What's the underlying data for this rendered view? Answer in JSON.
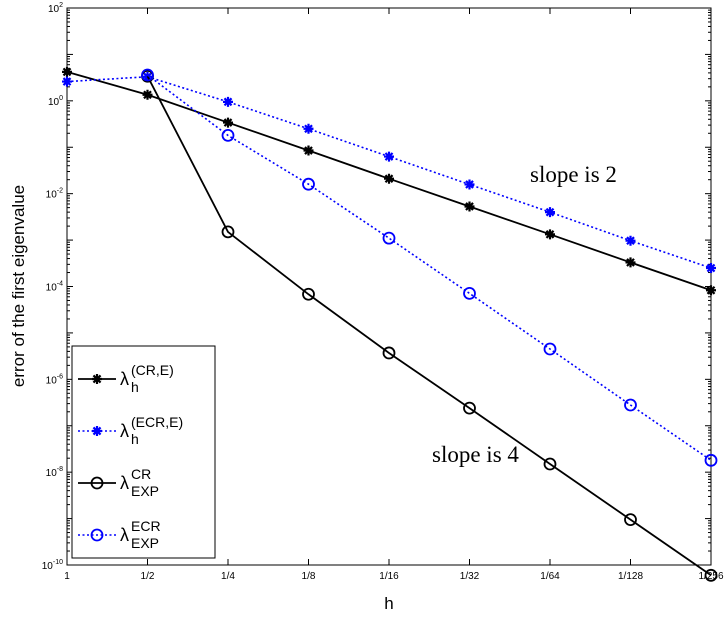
{
  "chart_data": {
    "type": "line",
    "xlabel": "h",
    "ylabel": "error of the first eigenvalue",
    "x_tick_labels": [
      "1",
      "1/2",
      "1/4",
      "1/8",
      "1/16",
      "1/32",
      "1/64",
      "1/128",
      "1/256"
    ],
    "y_scale": "log",
    "ylim_exponents": [
      -10,
      2
    ],
    "y_tick_labels": [
      {
        "base": "10",
        "exp": "-10"
      },
      {
        "base": "10",
        "exp": "-8"
      },
      {
        "base": "10",
        "exp": "-6"
      },
      {
        "base": "10",
        "exp": "-4"
      },
      {
        "base": "10",
        "exp": "-2"
      },
      {
        "base": "10",
        "exp": "0"
      },
      {
        "base": "10",
        "exp": "2"
      }
    ],
    "grid": false,
    "legend_position": "bottom-left",
    "annotations": [
      {
        "text": "slope is 2",
        "x": "1/32",
        "y": 0.012
      },
      {
        "text": "slope is 4",
        "x": "1/64",
        "y": 3.5e-08
      }
    ],
    "series": [
      {
        "label_symbol": "λ",
        "label_sub": "h",
        "label_sup": "(CR,E)",
        "color": "#000000",
        "line": "solid",
        "marker": "asterisk",
        "values": [
          4.2,
          1.35,
          0.34,
          0.085,
          0.021,
          0.0053,
          0.00133,
          0.00033,
          8.3e-05
        ]
      },
      {
        "label_symbol": "λ",
        "label_sub": "h",
        "label_sup": "(ECR,E)",
        "color": "#0000ff",
        "line": "dotted",
        "marker": "asterisk",
        "values": [
          2.6,
          3.3,
          0.95,
          0.25,
          0.063,
          0.0158,
          0.004,
          0.00097,
          0.00025
        ]
      },
      {
        "label_symbol": "λ",
        "label_sub": "EXP",
        "label_sup": "CR",
        "color": "#000000",
        "line": "solid",
        "marker": "circle",
        "values": [
          null,
          3.4,
          0.0015,
          6.8e-05,
          3.7e-06,
          2.4e-07,
          1.5e-08,
          9.5e-10,
          6e-11
        ]
      },
      {
        "label_symbol": "λ",
        "label_sub": "EXP",
        "label_sup": "ECR",
        "color": "#0000ff",
        "line": "dotted",
        "marker": "circle",
        "values": [
          null,
          3.6,
          0.18,
          0.016,
          0.0011,
          7.1e-05,
          4.5e-06,
          2.8e-07,
          1.8e-08
        ]
      }
    ]
  }
}
